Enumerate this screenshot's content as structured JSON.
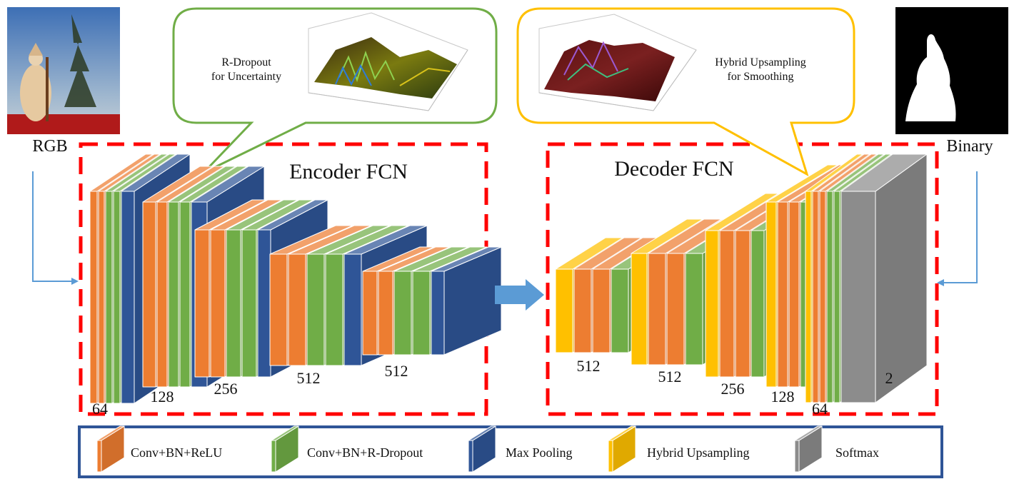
{
  "labels": {
    "rgb": "RGB",
    "binary": "Binary",
    "encoder": "Encoder FCN",
    "decoder": "Decoder FCN",
    "callout_left_1": "R-Dropout",
    "callout_left_2": "for Uncertainty",
    "callout_right_1": "Hybrid Upsampling",
    "callout_right_2": "for  Smoothing"
  },
  "channels": {
    "enc": [
      "64",
      "128",
      "256",
      "512",
      "512"
    ],
    "dec": [
      "512",
      "512",
      "256",
      "128",
      "64",
      "2"
    ]
  },
  "legend": [
    {
      "label": "Conv+BN+ReLU",
      "color": "#ed7d31"
    },
    {
      "label": "Conv+BN+R-Dropout",
      "color": "#70ad47"
    },
    {
      "label": "Max Pooling",
      "color": "#2f5597"
    },
    {
      "label": "Hybrid Upsampling",
      "color": "#ffc000"
    },
    {
      "label": "Softmax",
      "color": "#8c8c8c"
    }
  ],
  "colors": {
    "conv": "#ed7d31",
    "dropout": "#70ad47",
    "pool": "#2f5597",
    "upsample": "#ffc000",
    "softmax": "#8c8c8c",
    "dashed_box": "#ff0000",
    "legend_border": "#2f5597",
    "callout_left": "#70ad47",
    "callout_right": "#ffc000",
    "arrow": "#5b9bd5"
  }
}
